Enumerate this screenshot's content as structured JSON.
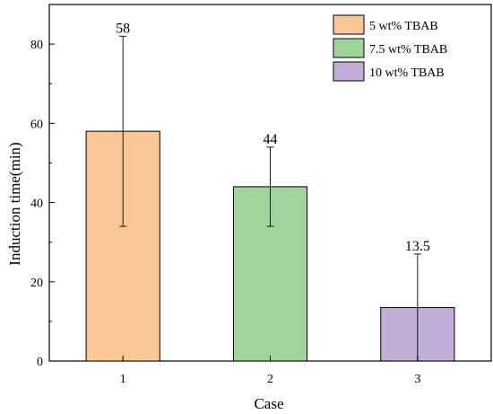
{
  "chart_data": {
    "type": "bar",
    "categories": [
      "1",
      "2",
      "3"
    ],
    "values": [
      58,
      44,
      13.5
    ],
    "errors": [
      {
        "low": 34,
        "high": 82
      },
      {
        "low": 34,
        "high": 54
      },
      {
        "low": 0,
        "high": 27
      }
    ],
    "data_labels": [
      "58",
      "44",
      "13.5"
    ],
    "series_names": [
      "5 wt% TBAB",
      "7.5 wt% TBAB",
      "10 wt% TBAB"
    ],
    "colors": [
      "#f9c695",
      "#9fd59b",
      "#c1aed6"
    ],
    "xlabel": "Case",
    "ylabel": "Induction time(min)",
    "ylim": [
      0,
      90
    ],
    "yticks": [
      0,
      20,
      40,
      60,
      80
    ],
    "grid": false,
    "legend_position": "top-right"
  }
}
